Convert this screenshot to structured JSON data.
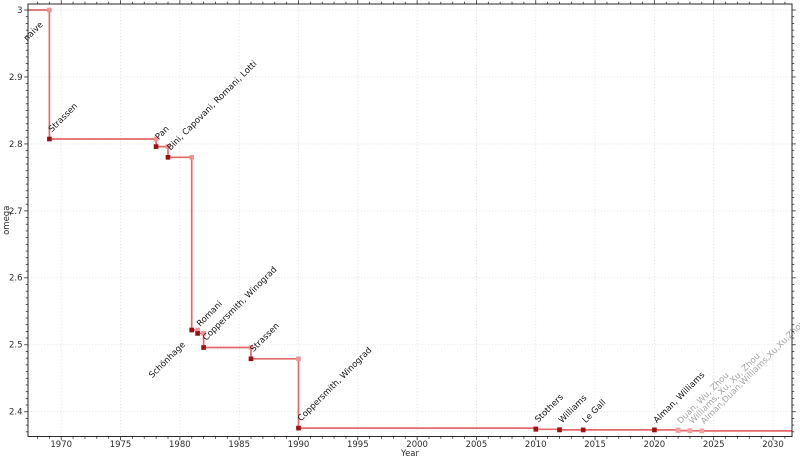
{
  "chart_data": {
    "type": "line",
    "subtype": "step-post",
    "title": "",
    "xlabel": "Year",
    "ylabel": "omega",
    "legend_position": "none",
    "grid": "dotted major gridlines, both axes",
    "xlim": [
      1967.2,
      2031.6
    ],
    "ylim": [
      2.363,
      3.009
    ],
    "x_major_ticks": [
      1970,
      1975,
      1980,
      1985,
      1990,
      1995,
      2000,
      2005,
      2010,
      2015,
      2020,
      2025,
      2030
    ],
    "x_minor_step": 1,
    "y_major_ticks": [
      2.4,
      2.5,
      2.6,
      2.7,
      2.8,
      2.9,
      3.0
    ],
    "y_tick_labels": [
      "2.4",
      "2.5",
      "2.6",
      "2.7",
      "2.8",
      "2.9",
      "3"
    ],
    "y_minor_step": 0.01,
    "initial_value": {
      "label": "naive",
      "omega": 3.0,
      "until_year": 1969,
      "label_placement": "below-left"
    },
    "points": [
      {
        "year": 1969,
        "omega": 2.8074,
        "label": "Strassen",
        "provisional": false
      },
      {
        "year": 1978,
        "omega": 2.796,
        "label": "Pan",
        "provisional": false
      },
      {
        "year": 1979,
        "omega": 2.78,
        "label": "Bini, Capovani, Romani, Lotti",
        "provisional": false
      },
      {
        "year": 1981,
        "omega": 2.522,
        "label": "Schönhage",
        "provisional": false,
        "label_placement": "below-left"
      },
      {
        "year": 1981.5,
        "omega": 2.517,
        "label": "Romani",
        "provisional": false
      },
      {
        "year": 1982,
        "omega": 2.496,
        "label": "Coppersmith, Winograd",
        "provisional": false
      },
      {
        "year": 1986,
        "omega": 2.479,
        "label": "Strassen",
        "provisional": false
      },
      {
        "year": 1990,
        "omega": 2.3755,
        "label": "Coppersmith, Winograd",
        "provisional": false
      },
      {
        "year": 2010,
        "omega": 2.3737,
        "label": "Stothers",
        "provisional": false
      },
      {
        "year": 2012,
        "omega": 2.3729,
        "label": "Williams",
        "provisional": false
      },
      {
        "year": 2014,
        "omega": 2.37287,
        "label": "Le Gall",
        "provisional": false
      },
      {
        "year": 2020,
        "omega": 2.37286,
        "label": "Alman, Williams",
        "provisional": false
      },
      {
        "year": 2022,
        "omega": 2.37187,
        "label": "Duan, Wu, Zhou",
        "provisional": true
      },
      {
        "year": 2023,
        "omega": 2.37156,
        "label": "Williams, Xu, Xu, Zhou",
        "provisional": true
      },
      {
        "year": 2024,
        "omega": 2.37134,
        "label": "Alman,Duan,Williams,Xu,Xu,Zhou",
        "provisional": true
      }
    ]
  },
  "colors": {
    "background": "#ffffff",
    "line": "#df4343",
    "line_opacity": "0.8",
    "step_marker": "#ef9394",
    "point_marker": "#9a1112",
    "provisional_marker": "#f2a0a4",
    "label_text": "#111111",
    "provisional_label_text": "#a3a3a3",
    "axis": "#2a2a2a",
    "tick_label": "#2b2b2b",
    "grid": "#d9d9d9"
  }
}
